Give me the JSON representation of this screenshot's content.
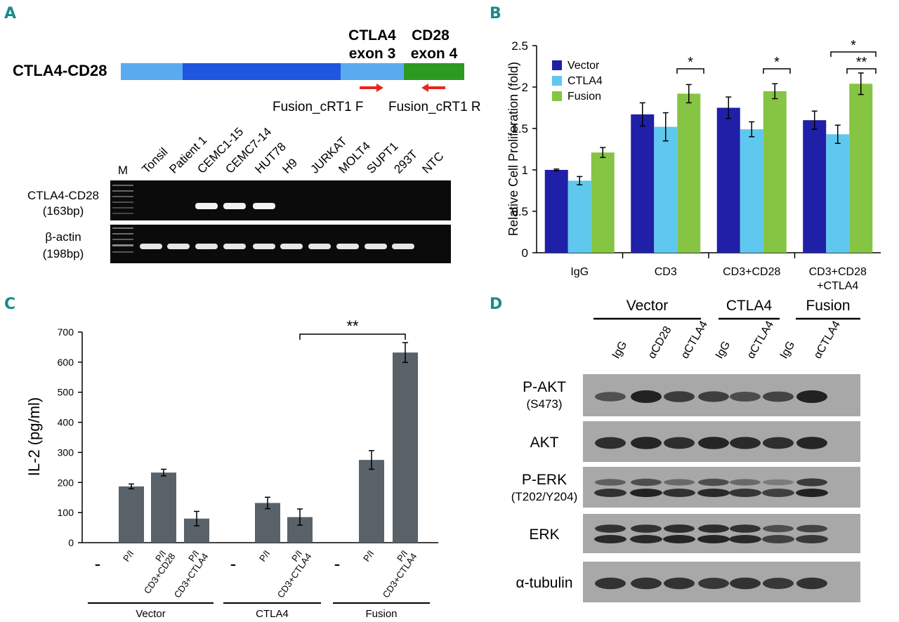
{
  "panels": {
    "a": {
      "letter": "A",
      "construct_label": "CTLA4-CD28",
      "exon1_label_line1": "CTLA4",
      "exon1_label_line2": "exon 3",
      "exon2_label_line1": "CD28",
      "exon2_label_line2": "exon 4",
      "primer_f": "Fusion_cRT1 F",
      "primer_r": "Fusion_cRT1 R",
      "lanes": [
        "M",
        "Tonsil",
        "Patient 1",
        "CEMC1-15",
        "CEMC7-14",
        "HUT78",
        "H9",
        "JURKAT",
        "MOLT4",
        "SUPT1",
        "293T",
        "NTC"
      ],
      "gel1_label_line1": "CTLA4-CD28",
      "gel1_label_line2": "(163bp)",
      "gel2_label_line1": "β-actin",
      "gel2_label_line2": "(198bp)",
      "gel1_bands": [
        0,
        0,
        1,
        1,
        1,
        0,
        0,
        0,
        0,
        0,
        0
      ],
      "gel2_bands": [
        1,
        1,
        1,
        1,
        1,
        1,
        1,
        1,
        1,
        1,
        0
      ]
    },
    "b": {
      "letter": "B"
    },
    "c": {
      "letter": "C"
    },
    "d": {
      "letter": "D",
      "groups": [
        "Vector",
        "CTLA4",
        "Fusion"
      ],
      "lanes": [
        "IgG",
        "αCD28",
        "αCTLA4",
        "IgG",
        "αCTLA4",
        "IgG",
        "αCTLA4"
      ],
      "blots": [
        {
          "label_line1": "P-AKT",
          "label_line2": "(S473)"
        },
        {
          "label_line1": "AKT",
          "label_line2": ""
        },
        {
          "label_line1": "P-ERK",
          "label_line2": "(T202/Y204)"
        },
        {
          "label_line1": "ERK",
          "label_line2": ""
        },
        {
          "label_line1": "α-tubulin",
          "label_line2": ""
        }
      ]
    }
  },
  "chart_data": [
    {
      "type": "bar",
      "panel": "B",
      "ylabel": "Relative Cell Proliferation (fold)",
      "ylim": [
        0,
        2.5
      ],
      "yticks": [
        "0",
        "0.5",
        "1",
        "1.5",
        "2",
        "2.5"
      ],
      "categories": [
        "IgG",
        "CD3",
        "CD3+CD28",
        "CD3+CD28\n+CTLA4"
      ],
      "series": [
        {
          "name": "Vector",
          "color": "#1f1fa8",
          "values": [
            1.0,
            1.67,
            1.75,
            1.6
          ],
          "errors": [
            0.01,
            0.14,
            0.13,
            0.11
          ]
        },
        {
          "name": "CTLA4",
          "color": "#5ec8ee",
          "values": [
            0.87,
            1.52,
            1.49,
            1.43
          ],
          "errors": [
            0.05,
            0.17,
            0.09,
            0.11
          ]
        },
        {
          "name": "Fusion",
          "color": "#86c443",
          "values": [
            1.21,
            1.92,
            1.95,
            2.04
          ],
          "errors": [
            0.06,
            0.11,
            0.09,
            0.13
          ]
        }
      ],
      "legend": "top-left",
      "annotations": [
        "*",
        "*",
        "*",
        "**"
      ]
    },
    {
      "type": "bar",
      "panel": "C",
      "ylabel": "IL-2 (pg/ml)",
      "ylim": [
        0,
        700
      ],
      "yticks": [
        "0",
        "100",
        "200",
        "300",
        "400",
        "500",
        "600",
        "700"
      ],
      "color": "#596268",
      "categories": [
        "-",
        "P/I",
        "P/I\nCD3+CD28",
        "P/I\nCD3+CTLA4",
        "-",
        "P/I",
        "P/I\nCD3+CTLA4",
        "-",
        "P/I",
        "P/I\nCD3+CTLA4"
      ],
      "values": [
        0,
        187,
        233,
        80,
        0,
        132,
        85,
        0,
        275,
        632
      ],
      "errors": [
        0,
        8,
        11,
        24,
        0,
        19,
        27,
        0,
        31,
        33
      ],
      "groups": [
        "Vector",
        "CTLA4",
        "Fusion"
      ],
      "annotations": [
        "**"
      ]
    }
  ]
}
